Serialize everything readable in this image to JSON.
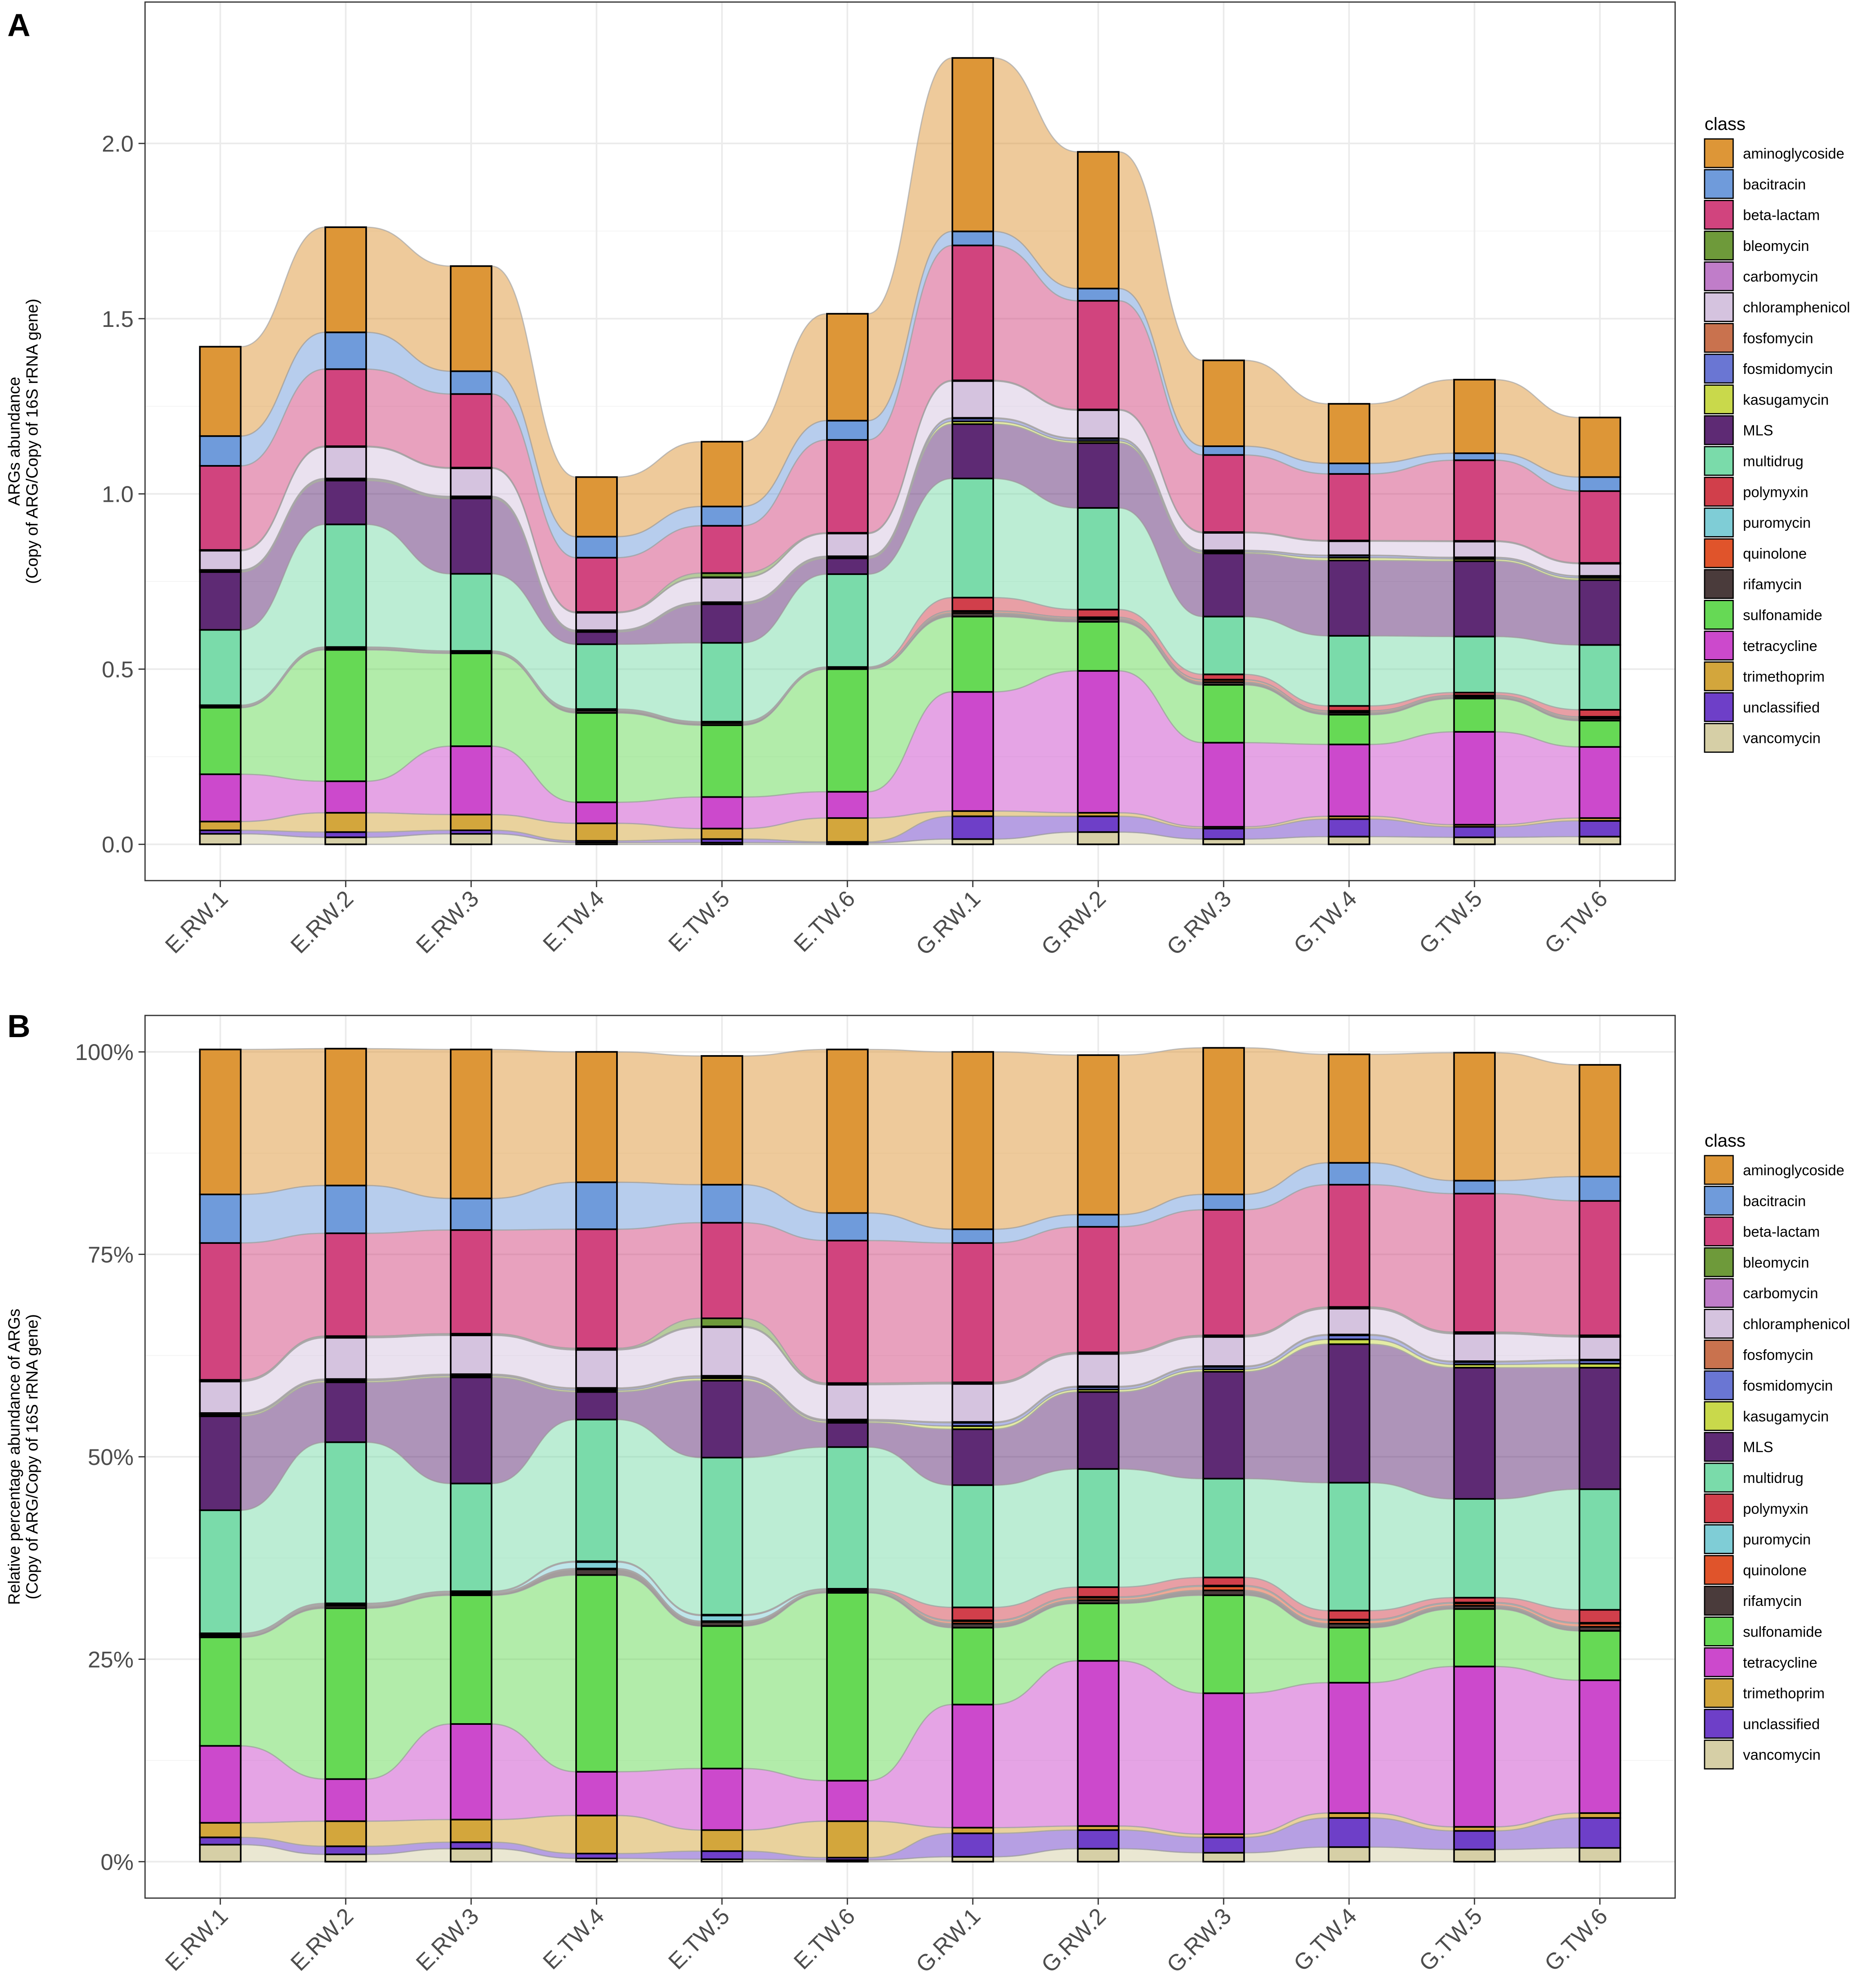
{
  "chart_data": [
    {
      "panel_letter": "A",
      "type": "stacked-bar-alluvial",
      "title": "",
      "ylabel_line1": "ARGs abundance",
      "ylabel_line2": "(Copy of ARG/Copy of 16S rRNA gene)",
      "xlabel": "",
      "ylim": [
        0,
        2.3
      ],
      "y_ticks": [
        0,
        0.5,
        1.0,
        1.5,
        2.0
      ],
      "y_tick_labels": [
        "0.0",
        "0.5",
        "1.0",
        "1.5",
        "2.0"
      ],
      "categories": [
        "E.RW.1",
        "E.RW.2",
        "E.RW.3",
        "E.TW.4",
        "E.TW.5",
        "E.TW.6",
        "G.RW.1",
        "G.RW.2",
        "G.RW.3",
        "G.TW.4",
        "G.TW.5",
        "G.TW.6"
      ],
      "legend_title": "class",
      "legend_position": "right",
      "series": [
        {
          "name": "vancomycin",
          "color": "#D6CFA6",
          "values": [
            0.03,
            0.02,
            0.03,
            0.005,
            0.005,
            0.004,
            0.015,
            0.035,
            0.015,
            0.022,
            0.02,
            0.022
          ]
        },
        {
          "name": "unclassified",
          "color": "#6E3FC8",
          "values": [
            0.01,
            0.015,
            0.01,
            0.005,
            0.01,
            0.003,
            0.065,
            0.045,
            0.03,
            0.05,
            0.03,
            0.045
          ]
        },
        {
          "name": "trimethoprim",
          "color": "#D3A63C",
          "values": [
            0.025,
            0.055,
            0.045,
            0.05,
            0.03,
            0.068,
            0.015,
            0.01,
            0.005,
            0.008,
            0.006,
            0.008
          ]
        },
        {
          "name": "tetracycline",
          "color": "#CC49CC",
          "values": [
            0.135,
            0.09,
            0.195,
            0.06,
            0.09,
            0.075,
            0.34,
            0.405,
            0.24,
            0.205,
            0.265,
            0.203
          ]
        },
        {
          "name": "sulfonamide",
          "color": "#66D955",
          "values": [
            0.19,
            0.375,
            0.265,
            0.255,
            0.205,
            0.35,
            0.215,
            0.14,
            0.165,
            0.085,
            0.095,
            0.075
          ]
        },
        {
          "name": "rifamycin",
          "color": "#4A3B3B",
          "values": [
            0.003,
            0.004,
            0.003,
            0.007,
            0.006,
            0.002,
            0.01,
            0.008,
            0.008,
            0.006,
            0.005,
            0.006
          ]
        },
        {
          "name": "quinolone",
          "color": "#E0542B",
          "values": [
            0.001,
            0.001,
            0.001,
            0.001,
            0.001,
            0.001,
            0.005,
            0.004,
            0.006,
            0.004,
            0.003,
            0.004
          ]
        },
        {
          "name": "puromycin",
          "color": "#7FCDD6",
          "values": [
            0.001,
            0.001,
            0.001,
            0.001,
            0.001,
            0.001,
            0.001,
            0.001,
            0.001,
            0.001,
            0.001,
            0.001
          ]
        },
        {
          "name": "polymyxin",
          "color": "#D13F4B",
          "values": [
            0.002,
            0.002,
            0.002,
            0.002,
            0.002,
            0.002,
            0.038,
            0.022,
            0.015,
            0.014,
            0.008,
            0.02
          ]
        },
        {
          "name": "multidrug",
          "color": "#7ADBAA",
          "values": [
            0.215,
            0.35,
            0.22,
            0.185,
            0.225,
            0.265,
            0.34,
            0.29,
            0.165,
            0.2,
            0.16,
            0.185
          ]
        },
        {
          "name": "MLS",
          "color": "#5E2A74",
          "values": [
            0.165,
            0.125,
            0.215,
            0.035,
            0.11,
            0.045,
            0.155,
            0.185,
            0.18,
            0.215,
            0.215,
            0.185
          ]
        },
        {
          "name": "kasugamycin",
          "color": "#C9D94B",
          "values": [
            0.003,
            0.003,
            0.003,
            0.002,
            0.003,
            0.003,
            0.008,
            0.006,
            0.004,
            0.008,
            0.006,
            0.006
          ]
        },
        {
          "name": "fosmidomycin",
          "color": "#6A76D3",
          "values": [
            0.002,
            0.002,
            0.002,
            0.002,
            0.002,
            0.002,
            0.008,
            0.006,
            0.004,
            0.006,
            0.004,
            0.005
          ]
        },
        {
          "name": "fosfomycin",
          "color": "#C9724E",
          "values": [
            0.001,
            0.001,
            0.001,
            0.001,
            0.001,
            0.001,
            0.002,
            0.002,
            0.001,
            0.001,
            0.001,
            0.001
          ]
        },
        {
          "name": "chloramphenicol",
          "color": "#D5C3DF",
          "values": [
            0.055,
            0.09,
            0.08,
            0.05,
            0.07,
            0.065,
            0.105,
            0.08,
            0.05,
            0.04,
            0.045,
            0.035
          ]
        },
        {
          "name": "carbomycin",
          "color": "#C07DC9",
          "values": [
            0.001,
            0.001,
            0.001,
            0.001,
            0.001,
            0.001,
            0.001,
            0.001,
            0.001,
            0.001,
            0.001,
            0.001
          ]
        },
        {
          "name": "bleomycin",
          "color": "#6E9A3A",
          "values": [
            0.001,
            0.001,
            0.001,
            0.001,
            0.012,
            0.001,
            0.001,
            0.001,
            0.001,
            0.001,
            0.001,
            0.001
          ]
        },
        {
          "name": "beta-lactam",
          "color": "#D1447E",
          "values": [
            0.24,
            0.22,
            0.21,
            0.155,
            0.135,
            0.265,
            0.385,
            0.31,
            0.22,
            0.19,
            0.23,
            0.205
          ]
        },
        {
          "name": "bacitracin",
          "color": "#6F9BDB",
          "values": [
            0.085,
            0.105,
            0.065,
            0.06,
            0.055,
            0.055,
            0.04,
            0.035,
            0.025,
            0.03,
            0.02,
            0.04
          ]
        },
        {
          "name": "aminoglycoside",
          "color": "#DD9637",
          "values": [
            0.255,
            0.3,
            0.3,
            0.17,
            0.185,
            0.305,
            0.495,
            0.39,
            0.245,
            0.17,
            0.21,
            0.17
          ]
        }
      ]
    },
    {
      "panel_letter": "B",
      "type": "stacked-bar-alluvial-percent",
      "title": "",
      "ylabel_line1": "Relative percentage abundance of ARGs",
      "ylabel_line2": "(Copy of ARG/Copy of 16S rRNA gene)",
      "xlabel": "",
      "ylim": [
        0,
        100
      ],
      "y_ticks": [
        0,
        25,
        50,
        75,
        100
      ],
      "y_tick_labels": [
        "0%",
        "25%",
        "50%",
        "75%",
        "100%"
      ],
      "categories": [
        "E.RW.1",
        "E.RW.2",
        "E.RW.3",
        "E.TW.4",
        "E.TW.5",
        "E.TW.6",
        "G.RW.1",
        "G.RW.2",
        "G.RW.3",
        "G.TW.4",
        "G.TW.5",
        "G.TW.6"
      ],
      "legend_title": "class",
      "legend_position": "right",
      "series": [
        {
          "name": "vancomycin",
          "color": "#D6CFA6",
          "values": [
            2.1,
            0.9,
            1.6,
            0.4,
            0.3,
            0.2,
            0.6,
            1.6,
            1.1,
            1.8,
            1.5,
            1.7
          ]
        },
        {
          "name": "unclassified",
          "color": "#6E3FC8",
          "values": [
            0.9,
            1.0,
            0.8,
            0.6,
            1.0,
            0.3,
            2.9,
            2.3,
            1.9,
            3.6,
            2.3,
            3.7
          ]
        },
        {
          "name": "trimethoprim",
          "color": "#D3A63C",
          "values": [
            1.8,
            3.1,
            2.8,
            4.7,
            2.6,
            4.5,
            0.7,
            0.5,
            0.4,
            0.6,
            0.5,
            0.6
          ]
        },
        {
          "name": "tetracycline",
          "color": "#CC49CC",
          "values": [
            9.5,
            5.2,
            11.8,
            5.4,
            7.6,
            5.0,
            15.2,
            20.4,
            17.4,
            16.1,
            19.8,
            16.4
          ]
        },
        {
          "name": "sulfonamide",
          "color": "#66D955",
          "values": [
            13.4,
            21.1,
            15.9,
            24.3,
            17.6,
            23.2,
            9.5,
            7.1,
            12.1,
            6.8,
            7.1,
            6.1
          ]
        },
        {
          "name": "rifamycin",
          "color": "#4A3B3B",
          "values": [
            0.2,
            0.3,
            0.2,
            0.7,
            0.5,
            0.2,
            0.5,
            0.4,
            0.6,
            0.5,
            0.4,
            0.5
          ]
        },
        {
          "name": "quinolone",
          "color": "#E0542B",
          "values": [
            0.1,
            0.1,
            0.1,
            0.1,
            0.1,
            0.1,
            0.3,
            0.3,
            0.5,
            0.4,
            0.3,
            0.4
          ]
        },
        {
          "name": "puromycin",
          "color": "#7FCDD6",
          "values": [
            0.1,
            0.1,
            0.1,
            0.8,
            0.7,
            0.1,
            0.1,
            0.1,
            0.1,
            0.1,
            0.1,
            0.1
          ]
        },
        {
          "name": "polymyxin",
          "color": "#D13F4B",
          "values": [
            0.1,
            0.1,
            0.1,
            0.1,
            0.1,
            0.1,
            1.6,
            1.2,
            1.0,
            1.1,
            0.6,
            1.6
          ]
        },
        {
          "name": "multidrug",
          "color": "#7ADBAA",
          "values": [
            15.2,
            19.9,
            13.3,
            17.5,
            19.4,
            17.5,
            15.1,
            14.6,
            12.2,
            15.8,
            12.2,
            14.9
          ]
        },
        {
          "name": "MLS",
          "color": "#5E2A74",
          "values": [
            11.6,
            7.4,
            13.1,
            3.4,
            9.5,
            3.0,
            6.9,
            9.5,
            13.2,
            17.1,
            16.2,
            15.0
          ]
        },
        {
          "name": "kasugamycin",
          "color": "#C9D94B",
          "values": [
            0.2,
            0.2,
            0.2,
            0.2,
            0.3,
            0.2,
            0.4,
            0.3,
            0.3,
            0.6,
            0.4,
            0.5
          ]
        },
        {
          "name": "fosmidomycin",
          "color": "#6A76D3",
          "values": [
            0.1,
            0.1,
            0.1,
            0.2,
            0.2,
            0.1,
            0.4,
            0.3,
            0.3,
            0.5,
            0.3,
            0.4
          ]
        },
        {
          "name": "fosfomycin",
          "color": "#C9724E",
          "values": [
            0.1,
            0.1,
            0.1,
            0.1,
            0.1,
            0.1,
            0.1,
            0.1,
            0.1,
            0.1,
            0.1,
            0.1
          ]
        },
        {
          "name": "chloramphenicol",
          "color": "#D5C3DF",
          "values": [
            3.9,
            5.1,
            4.8,
            4.7,
            6.0,
            4.3,
            4.7,
            4.0,
            3.6,
            3.2,
            3.4,
            2.8
          ]
        },
        {
          "name": "carbomycin",
          "color": "#C07DC9",
          "values": [
            0.1,
            0.1,
            0.1,
            0.1,
            0.1,
            0.1,
            0.1,
            0.1,
            0.1,
            0.1,
            0.1,
            0.1
          ]
        },
        {
          "name": "bleomycin",
          "color": "#6E9A3A",
          "values": [
            0.1,
            0.1,
            0.1,
            0.1,
            1.0,
            0.1,
            0.1,
            0.1,
            0.1,
            0.1,
            0.1,
            0.1
          ]
        },
        {
          "name": "beta-lactam",
          "color": "#D1447E",
          "values": [
            16.9,
            12.7,
            12.8,
            14.7,
            11.8,
            17.6,
            17.2,
            15.5,
            15.5,
            15.1,
            17.1,
            16.6
          ]
        },
        {
          "name": "bacitracin",
          "color": "#6F9BDB",
          "values": [
            6.0,
            5.9,
            3.9,
            5.8,
            4.7,
            3.4,
            1.7,
            1.5,
            1.9,
            2.7,
            1.6,
            3.0
          ]
        },
        {
          "name": "aminoglycoside",
          "color": "#DD9637",
          "values": [
            17.9,
            16.9,
            18.4,
            16.1,
            15.9,
            20.2,
            21.9,
            19.7,
            18.1,
            13.4,
            15.8,
            13.8
          ]
        }
      ]
    }
  ]
}
